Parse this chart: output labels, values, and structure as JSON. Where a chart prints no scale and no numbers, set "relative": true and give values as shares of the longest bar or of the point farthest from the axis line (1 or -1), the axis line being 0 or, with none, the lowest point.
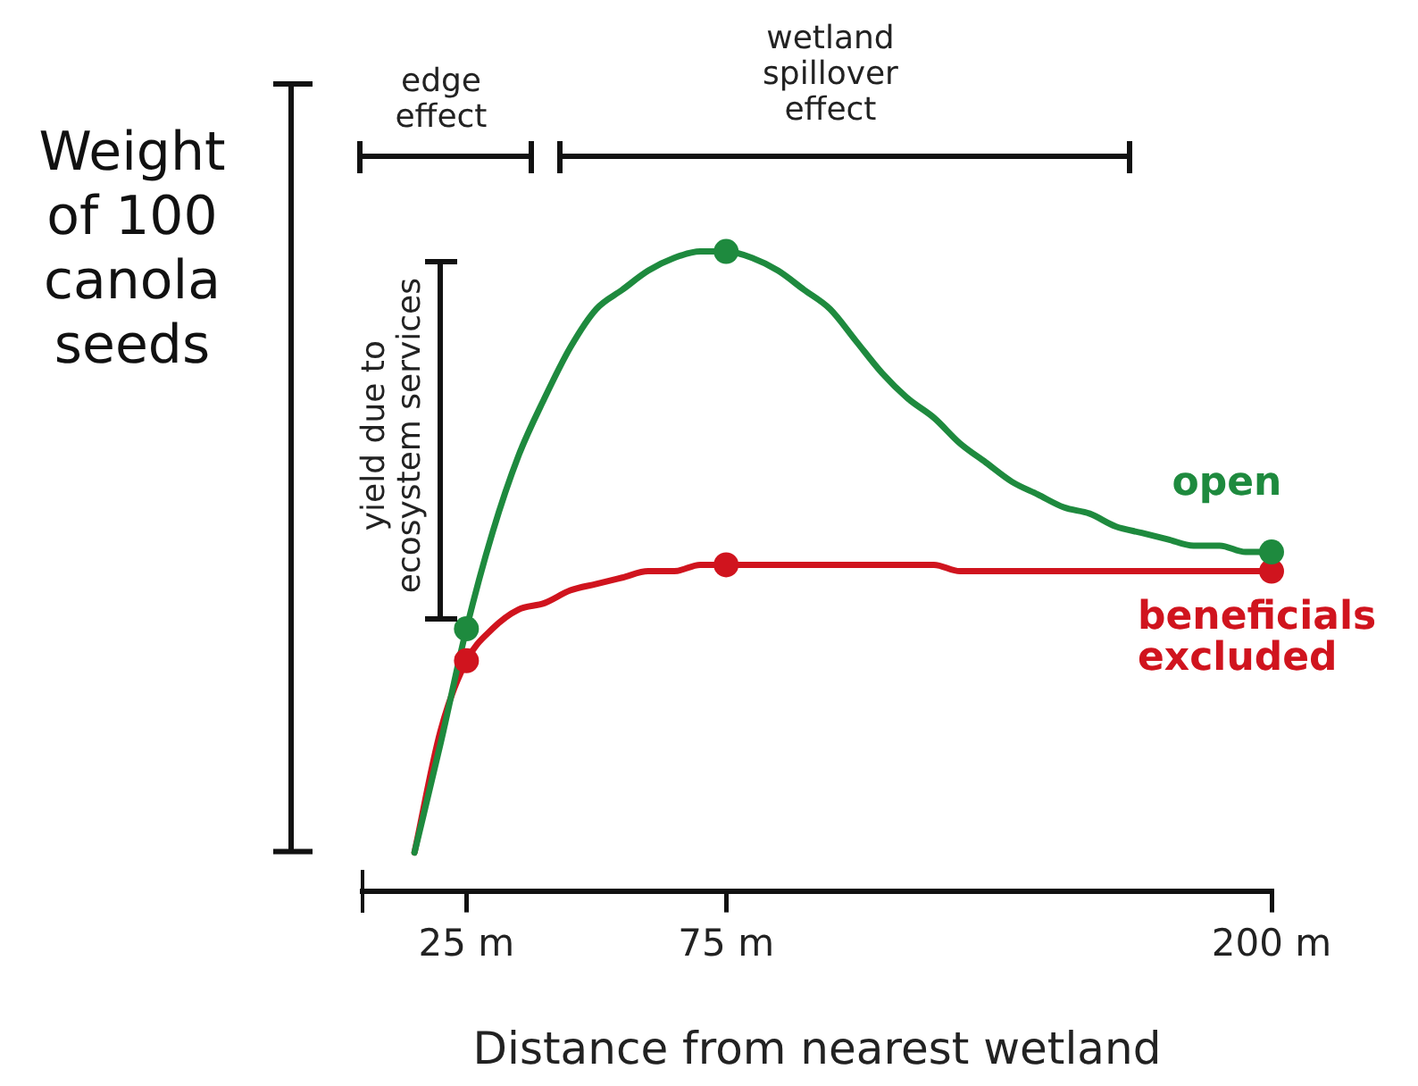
{
  "chart_data": {
    "type": "line",
    "relative": true,
    "ylabel": "Weight of 100 canola seeds",
    "xlabel": "Distance from nearest wetland",
    "categories": [
      null,
      null,
      null,
      null,
      "25 m",
      null,
      null,
      null,
      null,
      null,
      null,
      null,
      null,
      null,
      "75 m",
      null,
      null,
      null,
      null,
      null,
      null,
      null,
      null,
      null,
      null,
      null,
      null,
      null,
      null,
      null,
      null,
      null,
      null,
      null,
      null,
      "200 m"
    ],
    "series": [
      {
        "name": "open",
        "color": "#1e8a3e",
        "marker": "none",
        "values": [
          null,
          null,
          0.06,
          0.23,
          0.41,
          0.56,
          0.68,
          0.77,
          0.85,
          0.91,
          0.94,
          0.97,
          0.99,
          1.0,
          1.0,
          0.99,
          0.97,
          0.94,
          0.91,
          0.86,
          0.81,
          0.77,
          0.74,
          0.7,
          0.67,
          0.64,
          0.62,
          0.6,
          0.59,
          0.57,
          0.56,
          0.55,
          0.54,
          0.54,
          0.53,
          0.53
        ]
      },
      {
        "name": "beneficials excluded",
        "color": "#d0141e",
        "marker": "none",
        "values": [
          null,
          null,
          0.06,
          0.25,
          0.36,
          0.41,
          0.44,
          0.45,
          0.47,
          0.48,
          0.49,
          0.5,
          0.5,
          0.51,
          0.51,
          0.51,
          0.51,
          0.51,
          0.51,
          0.51,
          0.51,
          0.51,
          0.51,
          0.5,
          0.5,
          0.5,
          0.5,
          0.5,
          0.5,
          0.5,
          0.5,
          0.5,
          0.5,
          0.5,
          0.5,
          0.5
        ]
      },
      {
        "type": "scatter",
        "color": "#1e8a3e",
        "x": [
          "25 m",
          "75 m",
          "200 m"
        ],
        "values": [
          0.41,
          1.0,
          0.53
        ]
      },
      {
        "type": "scatter",
        "color": "#d0141e",
        "x": [
          "25 m",
          "75 m",
          "200 m"
        ],
        "values": [
          0.36,
          0.51,
          0.5
        ]
      }
    ],
    "marker": "circle",
    "legend": false,
    "annotations": [
      "edge effect",
      "wetland spillover effect",
      "yield due to ecosystem services"
    ]
  }
}
